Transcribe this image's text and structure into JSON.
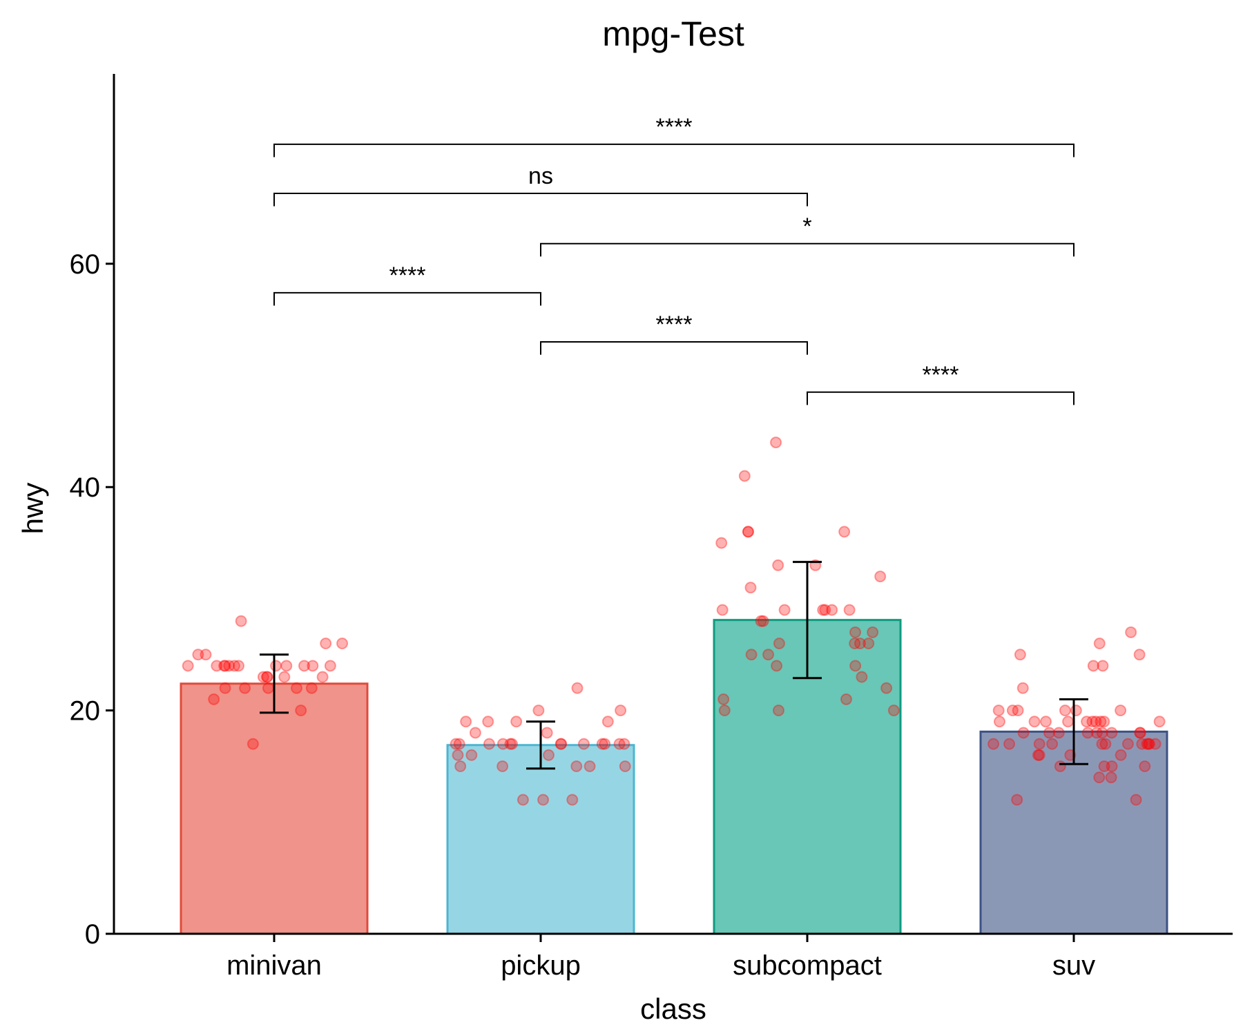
{
  "chart_data": {
    "type": "bar",
    "title": "mpg-Test",
    "xlabel": "class",
    "ylabel": "hwy",
    "categories": [
      "minivan",
      "pickup",
      "subcompact",
      "suv"
    ],
    "values": [
      22.4,
      16.9,
      28.1,
      18.1
    ],
    "error_low": [
      19.8,
      14.8,
      22.9,
      15.2
    ],
    "error_high": [
      25.0,
      19.0,
      33.3,
      21.0
    ],
    "ylim": [
      0,
      77
    ],
    "yticks": [
      0,
      20,
      40,
      60
    ],
    "grid": false,
    "colors": {
      "fills": [
        "#f0938a",
        "#96d6e4",
        "#68c7b7",
        "#8b98b5"
      ],
      "edges": [
        "#e04a3a",
        "#4db5d1",
        "#0e9b80",
        "#3c5285"
      ],
      "points": "#ff0000"
    },
    "points": [
      {
        "category": "minivan",
        "values": [
          24,
          24,
          23,
          24,
          22,
          22,
          24,
          24,
          21,
          23,
          24,
          17,
          22,
          25,
          26,
          23,
          28,
          24,
          23,
          24,
          24,
          25,
          26,
          22,
          24,
          23,
          24,
          20,
          24,
          22
        ]
      },
      {
        "category": "pickup",
        "values": [
          15,
          15,
          17,
          17,
          16,
          17,
          17,
          17,
          18,
          19,
          17,
          16,
          19,
          19,
          17,
          12,
          15,
          16,
          17,
          17,
          19,
          20,
          20,
          22,
          17,
          12,
          15,
          18,
          17,
          17,
          12,
          17,
          15
        ]
      },
      {
        "category": "subcompact",
        "values": [
          44,
          41,
          26,
          24,
          26,
          29,
          29,
          25,
          32,
          36,
          36,
          36,
          33,
          33,
          35,
          29,
          28,
          29,
          27,
          26,
          27,
          26,
          25,
          22,
          21,
          21,
          28,
          29,
          23,
          24,
          20,
          20,
          20,
          31,
          29
        ]
      },
      {
        "category": "suv",
        "values": [
          18,
          17,
          17,
          20,
          19,
          17,
          19,
          17,
          16,
          17,
          19,
          18,
          22,
          19,
          20,
          24,
          15,
          12,
          17,
          18,
          19,
          26,
          25,
          25,
          18,
          14,
          16,
          19,
          19,
          15,
          17,
          17,
          18,
          15,
          20,
          15,
          14,
          18,
          16,
          20,
          19,
          20,
          18,
          17,
          19,
          18,
          17,
          12,
          24,
          27,
          17,
          16,
          17,
          19,
          18,
          20
        ]
      }
    ],
    "annotations": [
      {
        "group1": "minivan",
        "group2": "suv",
        "label": "****"
      },
      {
        "group1": "minivan",
        "group2": "subcompact",
        "label": "ns"
      },
      {
        "group1": "pickup",
        "group2": "suv",
        "label": "*"
      },
      {
        "group1": "minivan",
        "group2": "pickup",
        "label": "****"
      },
      {
        "group1": "pickup",
        "group2": "subcompact",
        "label": "****"
      },
      {
        "group1": "subcompact",
        "group2": "suv",
        "label": "****"
      }
    ]
  }
}
